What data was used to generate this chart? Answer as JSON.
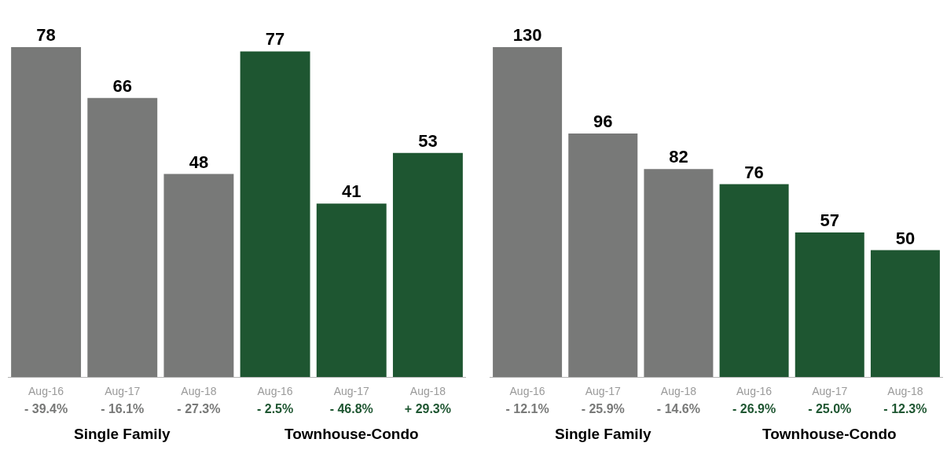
{
  "chart_data": [
    {
      "type": "bar",
      "categories": [
        "Aug-16\n- 39.4%",
        "Aug-17\n- 16.1%",
        "Aug-18\n- 27.3%",
        "Aug-16\n- 2.5%",
        "Aug-17\n- 46.8%",
        "Aug-18\n+ 29.3%"
      ],
      "values": [
        78,
        66,
        48,
        77,
        41,
        53
      ],
      "colors": [
        "#787978",
        "#787978",
        "#787978",
        "#1e5631",
        "#1e5631",
        "#1e5631"
      ],
      "data_labels": true,
      "annotations": [
        "Single Family",
        "Townhouse-Condo"
      ]
    },
    {
      "type": "bar",
      "categories": [
        "Aug-16\n- 12.1%",
        "Aug-17\n- 25.9%",
        "Aug-18\n- 14.6%",
        "Aug-16\n- 26.9%",
        "Aug-17\n- 25.0%",
        "Aug-18\n- 12.3%"
      ],
      "values": [
        130,
        96,
        82,
        76,
        57,
        50
      ],
      "colors": [
        "#787978",
        "#787978",
        "#787978",
        "#1e5631",
        "#1e5631",
        "#1e5631"
      ],
      "data_labels": true,
      "annotations": [
        "Single Family",
        "Townhouse-Condo"
      ]
    }
  ]
}
